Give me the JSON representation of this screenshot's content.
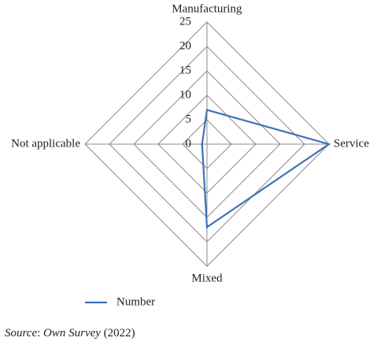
{
  "chart_data": {
    "type": "radar",
    "categories": [
      "Manufacturing",
      "Service",
      "Mixed",
      "Not applicable"
    ],
    "series": [
      {
        "name": "Number",
        "color": "#3d72b8",
        "values": [
          7,
          25,
          17,
          1
        ]
      }
    ],
    "ylim": [
      0,
      25
    ],
    "yticks": [
      0,
      5,
      10,
      15,
      20,
      25
    ],
    "grid": true,
    "legend": "bottom"
  },
  "source": [
    "Source",
    ": ",
    "Own Survey",
    " (2022)"
  ]
}
